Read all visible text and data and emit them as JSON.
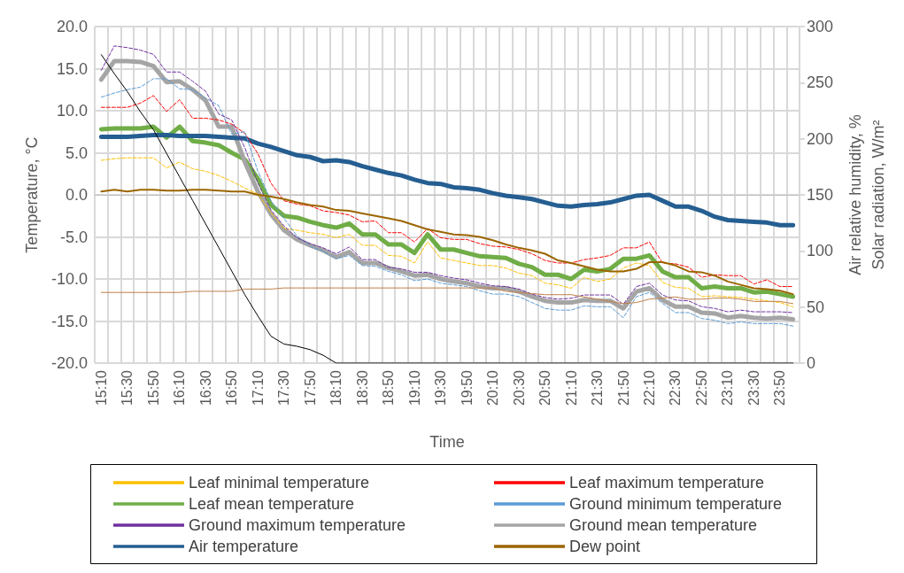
{
  "chart_data": {
    "type": "line",
    "xlabel": "Time",
    "ylabel": "Temperature, °C",
    "y2label": "Air relative humidity, %\nSolar radiation, W/m²",
    "categories": [
      "15:10",
      null,
      "15:30",
      null,
      "15:50",
      null,
      "16:10",
      null,
      "16:30",
      null,
      "16:50",
      null,
      "17:10",
      null,
      "17:30",
      null,
      "17:50",
      null,
      "18:10",
      null,
      "18:30",
      null,
      "18:50",
      null,
      "19:10",
      null,
      "19:30",
      null,
      "19:50",
      null,
      "20:10",
      null,
      "20:30",
      null,
      "20:50",
      null,
      "21:10",
      null,
      "21:30",
      null,
      "21:50",
      null,
      "22:10",
      null,
      "22:30",
      null,
      "22:50",
      null,
      "23:10",
      null,
      "23:30",
      null,
      "23:50",
      null
    ],
    "ylim": [
      -20,
      20
    ],
    "yticks": [
      {
        "value": -20,
        "label": "-20.0"
      },
      {
        "value": -15,
        "label": "-15.0"
      },
      {
        "value": -10,
        "label": "-10.0"
      },
      {
        "value": -5,
        "label": "-5.0"
      },
      {
        "value": 0,
        "label": "0.0"
      },
      {
        "value": 5,
        "label": "5.0"
      },
      {
        "value": 10,
        "label": "10.0"
      },
      {
        "value": 15,
        "label": "15.0"
      },
      {
        "value": 20,
        "label": "20.0"
      }
    ],
    "y2lim": [
      0,
      300
    ],
    "y2ticks": [
      0,
      50,
      100,
      150,
      200,
      250,
      300
    ],
    "grid": true,
    "legend": "bottom",
    "marker": "none",
    "series": [
      {
        "name": "Leaf minimal temperature",
        "color": "#ffc000",
        "line_style": "dashed",
        "values": [
          4.1,
          4.3,
          4.4,
          4.4,
          4.4,
          3.2,
          3.9,
          3.1,
          2.8,
          2.3,
          1.6,
          0.8,
          0.1,
          -2.1,
          -4.0,
          -4.2,
          -4.5,
          -4.7,
          -5.1,
          -4.7,
          -6.0,
          -6.0,
          -7.2,
          -7.3,
          -8.1,
          -5.6,
          -7.5,
          -7.8,
          -8.1,
          -8.4,
          -8.4,
          -8.7,
          -9.3,
          -9.6,
          -10.5,
          -10.7,
          -11.1,
          -9.8,
          -10.3,
          -10.0,
          -8.7,
          -8.1,
          -8.4,
          -10.4,
          -11.0,
          -11.1,
          -12.1,
          -12.0,
          -12.1,
          -12.2,
          -12.4,
          -12.6,
          -12.8,
          -13.3
        ]
      },
      {
        "name": "Leaf maximum temperature",
        "color": "#ff0000",
        "line_style": "dashed",
        "values": [
          10.4,
          10.4,
          10.4,
          10.9,
          11.8,
          9.9,
          11.3,
          9.1,
          9.1,
          8.9,
          8.4,
          7.3,
          4.9,
          1.4,
          -0.7,
          -1.1,
          -1.3,
          -1.9,
          -2.1,
          -2.4,
          -3.2,
          -3.1,
          -4.5,
          -4.5,
          -5.6,
          -4.0,
          -5.1,
          -5.3,
          -5.3,
          -5.8,
          -6.1,
          -6.2,
          -6.5,
          -7.0,
          -7.8,
          -8.1,
          -8.1,
          -7.7,
          -7.5,
          -7.2,
          -6.3,
          -6.3,
          -5.6,
          -8.1,
          -8.2,
          -8.6,
          -9.8,
          -9.5,
          -9.6,
          -9.6,
          -10.6,
          -10.1,
          -10.9,
          -10.9
        ]
      },
      {
        "name": "Leaf mean temperature",
        "color": "#70ad47",
        "line_style": "solid",
        "values": [
          7.8,
          7.9,
          7.9,
          7.9,
          8.1,
          6.8,
          8.1,
          6.4,
          6.2,
          5.9,
          5.0,
          4.2,
          1.9,
          -1.2,
          -2.5,
          -2.7,
          -3.2,
          -3.6,
          -3.9,
          -3.4,
          -4.7,
          -4.7,
          -5.9,
          -5.9,
          -6.9,
          -4.7,
          -6.5,
          -6.5,
          -6.9,
          -7.3,
          -7.4,
          -7.5,
          -8.2,
          -8.6,
          -9.5,
          -9.5,
          -10.0,
          -8.9,
          -9.1,
          -8.8,
          -7.6,
          -7.6,
          -7.2,
          -9.1,
          -9.8,
          -9.8,
          -11.1,
          -10.9,
          -11.1,
          -11.1,
          -11.6,
          -11.5,
          -11.8,
          -12.1
        ]
      },
      {
        "name": "Ground minimum temperature",
        "color": "#5b9bd5",
        "line_style": "dashed",
        "values": [
          11.6,
          12.1,
          12.5,
          12.8,
          13.8,
          13.8,
          12.6,
          12.5,
          11.5,
          10.6,
          7.2,
          7.5,
          2.8,
          -0.7,
          -2.8,
          -4.9,
          -6.1,
          -6.7,
          -7.6,
          -7.2,
          -8.4,
          -8.5,
          -9.1,
          -9.5,
          -10.2,
          -10.0,
          -10.5,
          -10.7,
          -10.9,
          -11.4,
          -11.8,
          -11.8,
          -12.1,
          -12.8,
          -13.5,
          -13.7,
          -13.7,
          -13.2,
          -13.3,
          -13.3,
          -14.6,
          -12.1,
          -11.6,
          -12.9,
          -14.0,
          -14.0,
          -14.7,
          -14.9,
          -15.3,
          -15.1,
          -15.3,
          -15.3,
          -15.3,
          -15.6
        ]
      },
      {
        "name": "Ground maximum temperature",
        "color": "#7030a0",
        "line_style": "dashed",
        "values": [
          14.8,
          17.7,
          17.5,
          17.2,
          16.7,
          14.6,
          14.6,
          13.5,
          12.3,
          9.6,
          8.9,
          5.6,
          1.4,
          -1.8,
          -3.7,
          -5.1,
          -5.8,
          -6.3,
          -7.0,
          -6.2,
          -7.7,
          -7.7,
          -8.6,
          -8.8,
          -9.2,
          -9.2,
          -9.6,
          -9.9,
          -10.1,
          -10.5,
          -10.8,
          -10.9,
          -11.2,
          -11.8,
          -12.2,
          -12.4,
          -12.3,
          -11.9,
          -11.9,
          -11.9,
          -13.0,
          -10.9,
          -10.5,
          -11.9,
          -12.5,
          -12.6,
          -13.3,
          -13.5,
          -13.9,
          -13.7,
          -13.9,
          -13.9,
          -13.9,
          -14.0
        ]
      },
      {
        "name": "Ground mean temperature",
        "color": "#a5a5a5",
        "line_style": "solid",
        "values": [
          13.7,
          15.9,
          15.9,
          15.8,
          15.3,
          13.4,
          13.5,
          12.5,
          11.2,
          8.1,
          8.1,
          3.9,
          0.4,
          -2.3,
          -4.2,
          -5.3,
          -6.0,
          -6.6,
          -7.4,
          -6.8,
          -8.1,
          -8.1,
          -8.7,
          -9.1,
          -9.6,
          -9.5,
          -10.0,
          -10.3,
          -10.5,
          -10.9,
          -11.1,
          -11.1,
          -11.5,
          -12.1,
          -12.6,
          -12.8,
          -12.8,
          -12.5,
          -12.6,
          -12.6,
          -13.5,
          -11.5,
          -11.1,
          -12.5,
          -13.3,
          -13.3,
          -14.0,
          -14.1,
          -14.6,
          -14.4,
          -14.6,
          -14.7,
          -14.6,
          -14.8
        ]
      },
      {
        "name": "Air temperature",
        "color": "#255e91",
        "line_style": "solid",
        "values": [
          6.9,
          6.9,
          6.9,
          7.0,
          7.1,
          7.1,
          7.0,
          7.0,
          7.0,
          6.9,
          6.8,
          6.7,
          6.1,
          5.7,
          5.2,
          4.7,
          4.5,
          4.0,
          4.1,
          3.9,
          3.4,
          3.0,
          2.6,
          2.3,
          1.8,
          1.4,
          1.3,
          0.9,
          0.8,
          0.6,
          0.2,
          -0.1,
          -0.3,
          -0.5,
          -0.9,
          -1.3,
          -1.4,
          -1.2,
          -1.1,
          -0.9,
          -0.5,
          -0.1,
          0.0,
          -0.7,
          -1.4,
          -1.4,
          -1.9,
          -2.6,
          -3.0,
          -3.1,
          -3.2,
          -3.3,
          -3.6,
          -3.6
        ]
      },
      {
        "name": "Dew point",
        "color": "#9c6500",
        "line_style": "solid",
        "values": [
          0.4,
          0.6,
          0.4,
          0.6,
          0.6,
          0.5,
          0.5,
          0.6,
          0.6,
          0.5,
          0.4,
          0.4,
          0.0,
          -0.2,
          -0.5,
          -0.9,
          -1.2,
          -1.4,
          -1.8,
          -1.9,
          -2.2,
          -2.5,
          -2.8,
          -3.1,
          -3.6,
          -4.1,
          -4.4,
          -4.7,
          -4.8,
          -5.0,
          -5.4,
          -5.9,
          -6.3,
          -6.6,
          -7.0,
          -7.8,
          -8.1,
          -8.5,
          -8.9,
          -9.1,
          -9.1,
          -8.8,
          -8.0,
          -8.0,
          -8.4,
          -9.1,
          -9.2,
          -9.6,
          -10.3,
          -10.7,
          -11.1,
          -11.2,
          -11.4,
          -11.8
        ]
      },
      {
        "color": "#000000",
        "axis": "y2",
        "line_style": "solid",
        "values": [
          275,
          258,
          242,
          224,
          208,
          187,
          166,
          145,
          124,
          103,
          82,
          61,
          42,
          24,
          17,
          15,
          12,
          7,
          0,
          0,
          0,
          0,
          0,
          0,
          0,
          0,
          0,
          0,
          0,
          0,
          0,
          0,
          0,
          0,
          0,
          0,
          0,
          0,
          0,
          0,
          0,
          0,
          0,
          0,
          0,
          0,
          0,
          0,
          0,
          0,
          0,
          0,
          0,
          0
        ]
      },
      {
        "color": "#c0804a",
        "axis": "y2",
        "line_style": "solid",
        "values": [
          63,
          63,
          63,
          63,
          63,
          63,
          63,
          64,
          64,
          64,
          64,
          66,
          66,
          66,
          67,
          67,
          67,
          67,
          67,
          67,
          67,
          67,
          67,
          67,
          67,
          67,
          67,
          67,
          67,
          67,
          67,
          64,
          63,
          62,
          61,
          61,
          61,
          59,
          57,
          55,
          53,
          54,
          57,
          58,
          59,
          57,
          57,
          58,
          58,
          57,
          55,
          55,
          55,
          53
        ]
      }
    ]
  }
}
